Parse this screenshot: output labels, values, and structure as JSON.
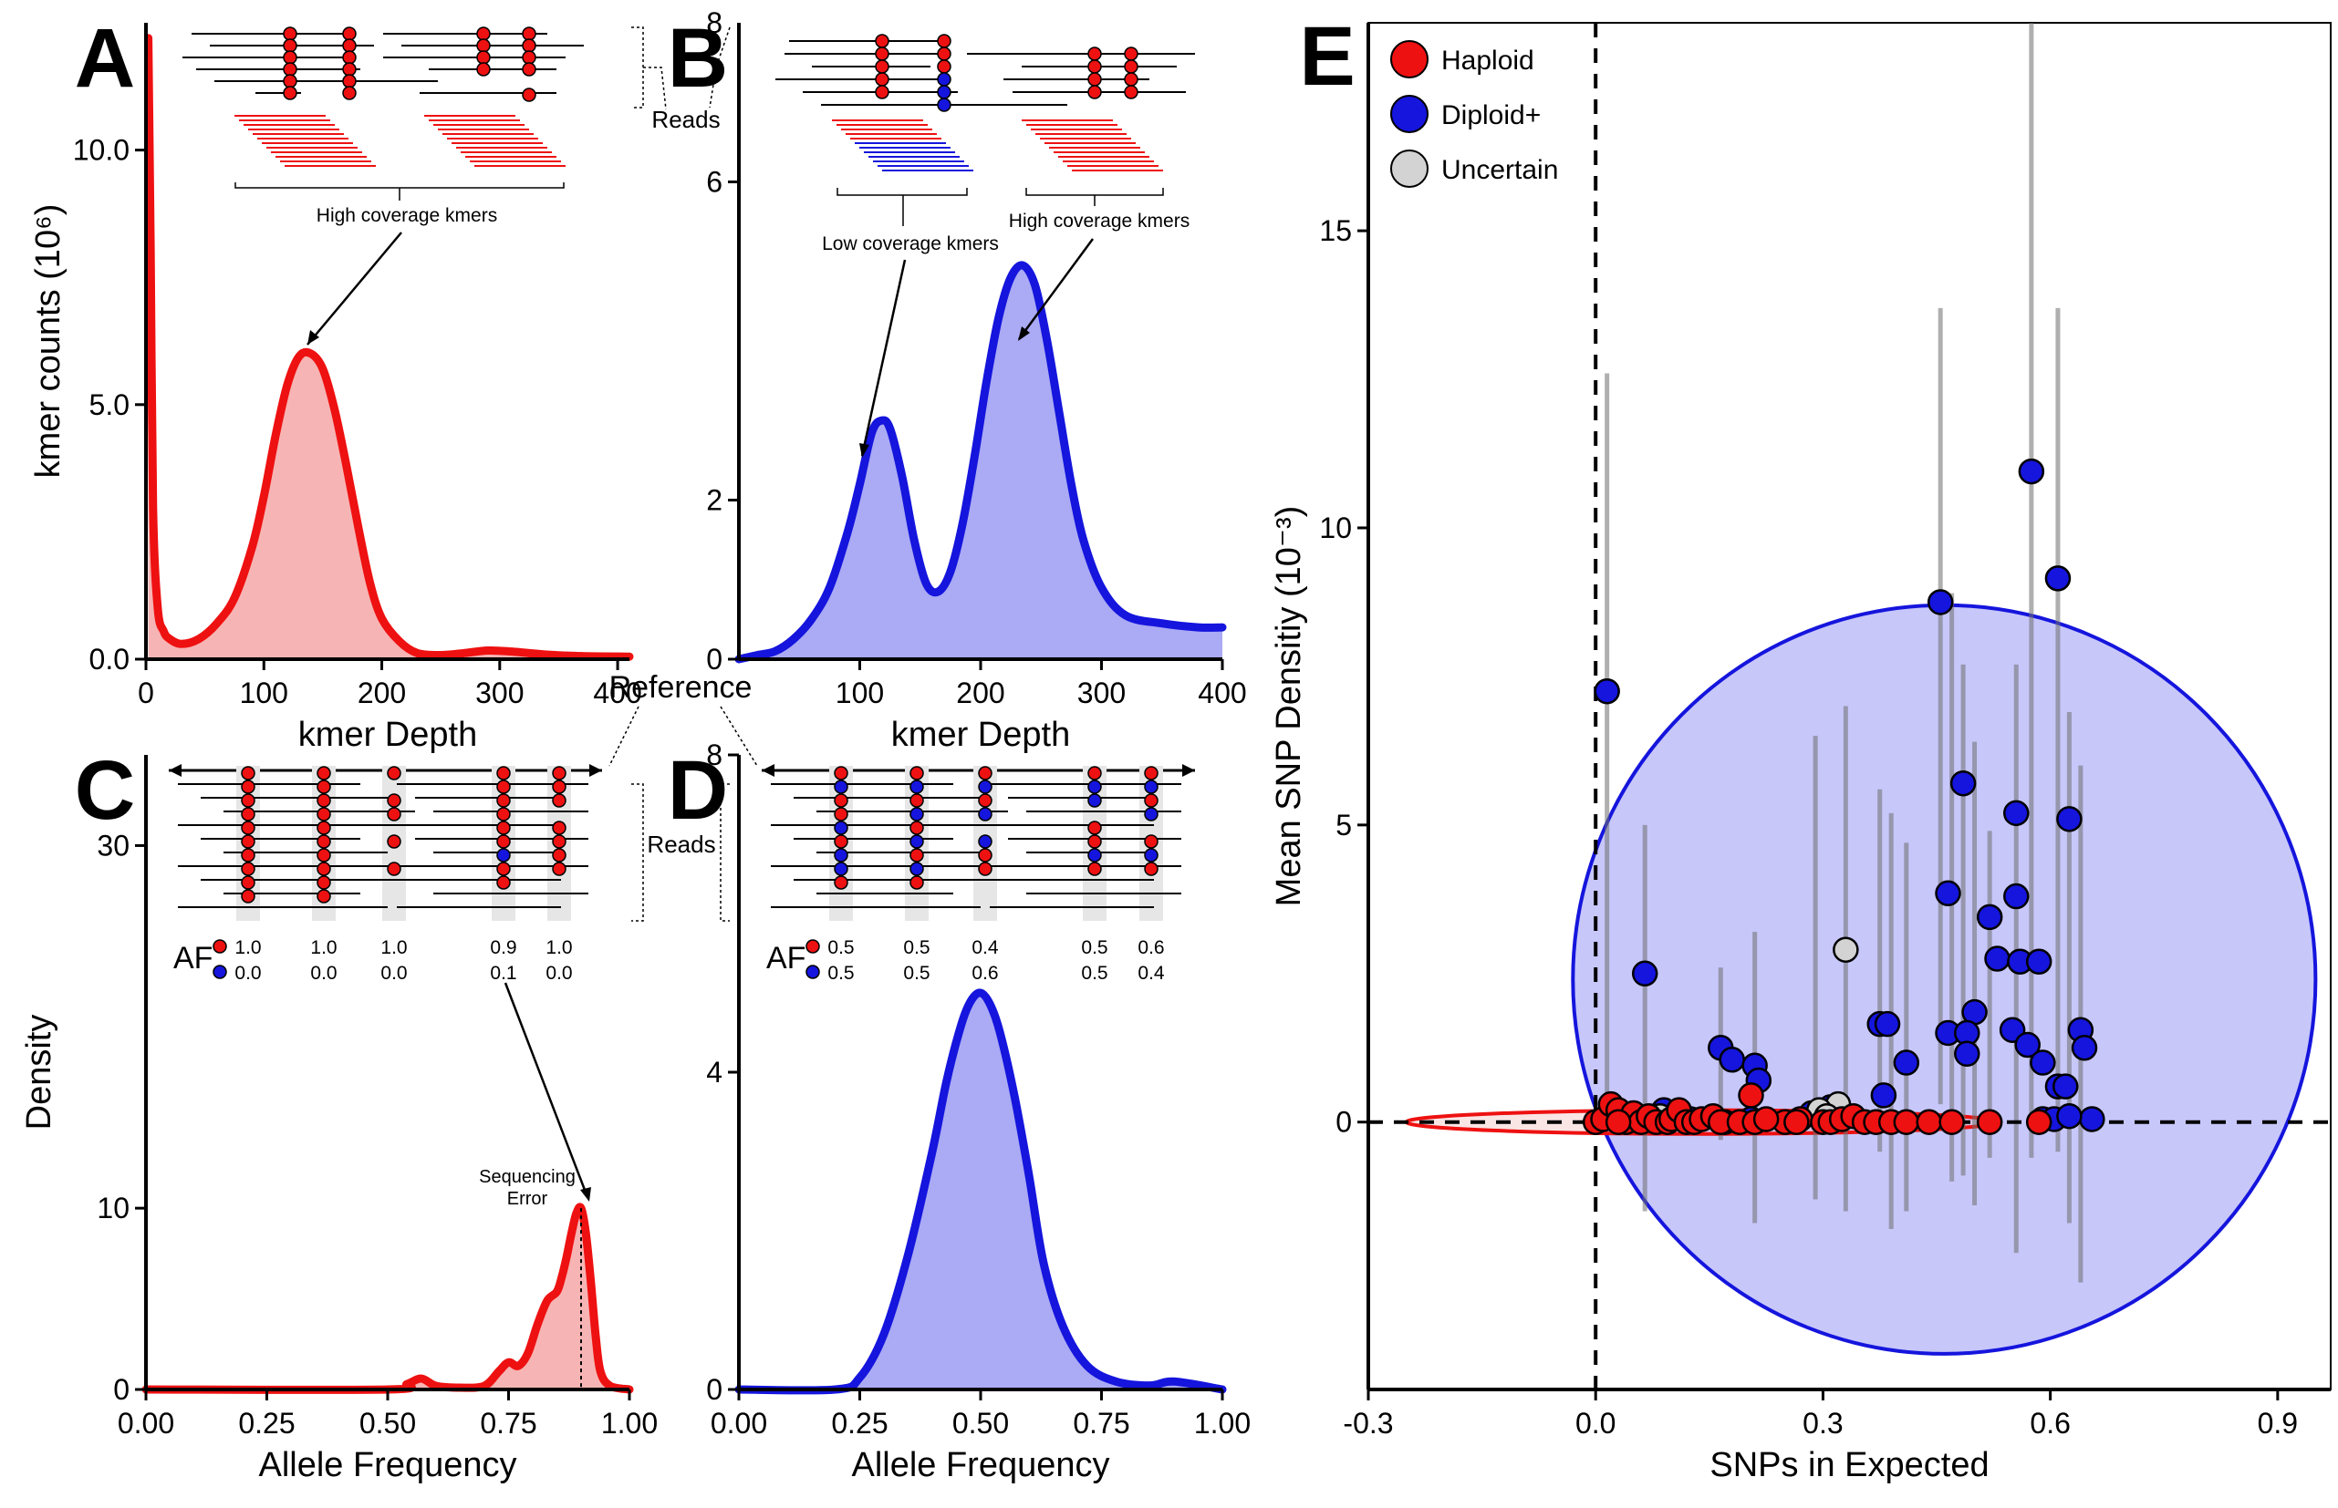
{
  "colors": {
    "haploid": "#ee1111",
    "haploid_fill": "#f7b4b4",
    "diploid": "#1515dd",
    "diploid_fill": "#aaaaf5",
    "uncertain": "#d3d3d3"
  },
  "chart_data": [
    {
      "id": "A",
      "panel_label": "A",
      "type": "area",
      "xlabel": "kmer Depth",
      "ylabel": "kmer counts (10⁶)",
      "xlim": [
        0,
        410
      ],
      "ylim": [
        0,
        12.5
      ],
      "xticks": [
        0,
        100,
        200,
        300,
        400
      ],
      "xtick_labels": [
        "0",
        "100",
        "200",
        "300",
        "400"
      ],
      "yticks": [
        0,
        5,
        10
      ],
      "ytick_labels": [
        "0.0",
        "5.0",
        "10.0"
      ],
      "series": [
        {
          "color": "haploid",
          "fill": "haploid_fill",
          "x": [
            2,
            4,
            6,
            10,
            15,
            20,
            30,
            45,
            60,
            75,
            90,
            100,
            110,
            120,
            130,
            140,
            150,
            160,
            170,
            180,
            190,
            200,
            215,
            230,
            250,
            270,
            290,
            310,
            340,
            370,
            410
          ],
          "y": [
            12.2,
            8.0,
            3.0,
            1.0,
            0.55,
            0.4,
            0.3,
            0.4,
            0.7,
            1.2,
            2.2,
            3.2,
            4.4,
            5.4,
            5.95,
            6.0,
            5.7,
            4.9,
            3.8,
            2.6,
            1.5,
            0.8,
            0.35,
            0.12,
            0.08,
            0.12,
            0.17,
            0.15,
            0.09,
            0.06,
            0.05
          ]
        }
      ],
      "inset": {
        "caption": "High coverage kmers",
        "side_label": "Reads"
      }
    },
    {
      "id": "B",
      "panel_label": "B",
      "type": "area",
      "xlabel": "kmer Depth",
      "ylabel": "",
      "xlim": [
        0,
        400
      ],
      "ylim": [
        0,
        8
      ],
      "xticks": [
        100,
        200,
        300,
        400
      ],
      "xtick_labels": [
        "100",
        "200",
        "300",
        "400"
      ],
      "yticks": [
        0,
        2,
        6
      ],
      "ytick_labels": [
        "0",
        "2",
        "6"
      ],
      "yaxis_top_label": "8",
      "series": [
        {
          "color": "diploid",
          "fill": "diploid_fill",
          "x": [
            0,
            15,
            30,
            45,
            60,
            75,
            90,
            100,
            110,
            118,
            125,
            135,
            145,
            155,
            165,
            175,
            185,
            195,
            205,
            215,
            225,
            235,
            245,
            255,
            265,
            275,
            285,
            300,
            320,
            350,
            380,
            400
          ],
          "y": [
            0.0,
            0.05,
            0.1,
            0.25,
            0.5,
            0.9,
            1.6,
            2.2,
            2.85,
            3.0,
            2.9,
            2.3,
            1.5,
            0.95,
            0.85,
            1.1,
            1.7,
            2.55,
            3.5,
            4.3,
            4.8,
            4.95,
            4.7,
            4.0,
            3.1,
            2.2,
            1.5,
            0.9,
            0.55,
            0.45,
            0.4,
            0.4
          ]
        }
      ],
      "inset": {
        "caption_low": "Low coverage kmers",
        "caption_high": "High coverage kmers"
      }
    },
    {
      "id": "C",
      "panel_label": "C",
      "type": "area",
      "xlabel": "Allele Frequency",
      "ylabel": "Density",
      "xlim": [
        0,
        1
      ],
      "ylim": [
        0,
        35
      ],
      "xticks": [
        0,
        0.25,
        0.5,
        0.75,
        1
      ],
      "xtick_labels": [
        "0.00",
        "0.25",
        "0.50",
        "0.75",
        "1.00"
      ],
      "yticks": [
        0,
        10,
        30
      ],
      "ytick_labels": [
        "0",
        "10",
        "30"
      ],
      "series": [
        {
          "color": "haploid",
          "fill": "haploid_fill",
          "x": [
            0,
            0.5,
            0.54,
            0.57,
            0.6,
            0.65,
            0.7,
            0.73,
            0.75,
            0.77,
            0.79,
            0.81,
            0.83,
            0.85,
            0.86,
            0.87,
            0.88,
            0.89,
            0.9,
            0.91,
            0.92,
            0.93,
            0.94,
            0.96,
            1.0
          ],
          "y": [
            0,
            0,
            0.3,
            0.6,
            0.2,
            0.1,
            0.2,
            1.0,
            1.5,
            1.3,
            2.0,
            3.6,
            4.9,
            5.4,
            6.2,
            7.3,
            8.6,
            9.7,
            10.0,
            8.6,
            6.0,
            3.0,
            1.0,
            0.2,
            0.0
          ]
        }
      ],
      "annotation": "Sequencing Error",
      "inset": {
        "af_label": "AF",
        "ref_label": "Reference",
        "side_label": "Reads",
        "columns": [
          {
            "top": "1.0",
            "bottom": "0.0"
          },
          {
            "top": "1.0",
            "bottom": "0.0"
          },
          {
            "top": "1.0",
            "bottom": "0.0"
          },
          {
            "top": "0.9",
            "bottom": "0.1"
          },
          {
            "top": "1.0",
            "bottom": "0.0"
          }
        ]
      }
    },
    {
      "id": "D",
      "panel_label": "D",
      "type": "area",
      "xlabel": "Allele Frequency",
      "ylabel": "",
      "xlim": [
        0,
        1
      ],
      "ylim": [
        0,
        8
      ],
      "xticks": [
        0,
        0.25,
        0.5,
        0.75,
        1
      ],
      "xtick_labels": [
        "0.00",
        "0.25",
        "0.50",
        "0.75",
        "1.00"
      ],
      "yticks": [
        0,
        4,
        8
      ],
      "ytick_labels": [
        "0",
        "4",
        "8"
      ],
      "series": [
        {
          "color": "diploid",
          "fill": "diploid_fill",
          "x": [
            0,
            0.2,
            0.25,
            0.3,
            0.35,
            0.4,
            0.43,
            0.46,
            0.48,
            0.5,
            0.52,
            0.54,
            0.57,
            0.6,
            0.63,
            0.67,
            0.72,
            0.78,
            0.85,
            0.9,
            1.0
          ],
          "y": [
            0,
            0.0,
            0.15,
            0.7,
            1.7,
            3.0,
            3.9,
            4.6,
            4.9,
            5.0,
            4.85,
            4.5,
            3.7,
            2.7,
            1.6,
            0.8,
            0.3,
            0.1,
            0.05,
            0.1,
            0.0
          ]
        }
      ],
      "inset": {
        "af_label": "AF",
        "columns": [
          {
            "top": "0.5",
            "bottom": "0.5"
          },
          {
            "top": "0.5",
            "bottom": "0.5"
          },
          {
            "top": "0.4",
            "bottom": "0.6"
          },
          {
            "top": "0.5",
            "bottom": "0.5"
          },
          {
            "top": "0.6",
            "bottom": "0.4"
          }
        ]
      }
    },
    {
      "id": "E",
      "panel_label": "E",
      "type": "scatter",
      "xlabel": "SNPs in Expected",
      "ylabel": "Mean SNP Densitiy (10⁻³)",
      "xlim": [
        -0.3,
        0.97
      ],
      "ylim": [
        -4.5,
        18.5
      ],
      "xticks": [
        -0.3,
        0,
        0.3,
        0.6,
        0.9
      ],
      "xtick_labels": [
        "-0.3",
        "0.0",
        "0.3",
        "0.6",
        "0.9"
      ],
      "yticks": [
        0,
        5,
        10,
        15
      ],
      "ytick_labels": [
        "0",
        "5",
        "10",
        "15"
      ],
      "reference_lines": {
        "x": 0,
        "y": 0
      },
      "legend": {
        "position": "top-left",
        "items": [
          {
            "label": "Haploid",
            "color": "haploid"
          },
          {
            "label": "Diploid+",
            "color": "diploid"
          },
          {
            "label": "Uncertain",
            "color": "uncertain"
          }
        ]
      },
      "ellipses": [
        {
          "class": "diploid",
          "cx": 0.46,
          "cy": 2.4,
          "rx": 0.49,
          "ry": 6.3
        },
        {
          "class": "haploid",
          "cx": 0.14,
          "cy": 0.0,
          "rx": 0.39,
          "ry": 0.2
        }
      ],
      "errorbars": [
        {
          "x": 0.015,
          "lo": 0.0,
          "hi": 12.6
        },
        {
          "x": 0.065,
          "lo": -1.5,
          "hi": 5.0
        },
        {
          "x": 0.165,
          "lo": -0.3,
          "hi": 2.6
        },
        {
          "x": 0.21,
          "lo": -1.7,
          "hi": 3.2
        },
        {
          "x": 0.29,
          "lo": -1.3,
          "hi": 6.5
        },
        {
          "x": 0.33,
          "lo": -1.5,
          "hi": 7.0
        },
        {
          "x": 0.375,
          "lo": -0.5,
          "hi": 5.6
        },
        {
          "x": 0.39,
          "lo": -1.8,
          "hi": 5.2
        },
        {
          "x": 0.41,
          "lo": -1.5,
          "hi": 4.7
        },
        {
          "x": 0.455,
          "lo": 0.3,
          "hi": 13.7
        },
        {
          "x": 0.47,
          "lo": -1.0,
          "hi": 8.9
        },
        {
          "x": 0.485,
          "lo": -0.9,
          "hi": 7.7
        },
        {
          "x": 0.5,
          "lo": -1.4,
          "hi": 6.4
        },
        {
          "x": 0.52,
          "lo": -0.6,
          "hi": 4.9
        },
        {
          "x": 0.555,
          "lo": -2.2,
          "hi": 7.7
        },
        {
          "x": 0.575,
          "lo": -0.6,
          "hi": 18.5
        },
        {
          "x": 0.61,
          "lo": -0.5,
          "hi": 13.7
        },
        {
          "x": 0.625,
          "lo": -1.7,
          "hi": 6.9
        },
        {
          "x": 0.64,
          "lo": -2.7,
          "hi": 6.0
        }
      ],
      "points": {
        "diploid": [
          [
            0.015,
            7.25
          ],
          [
            0.575,
            10.95
          ],
          [
            0.61,
            9.15
          ],
          [
            0.455,
            8.75
          ],
          [
            0.485,
            5.7
          ],
          [
            0.555,
            5.2
          ],
          [
            0.625,
            5.1
          ],
          [
            0.065,
            2.5
          ],
          [
            0.465,
            3.85
          ],
          [
            0.555,
            3.8
          ],
          [
            0.52,
            3.45
          ],
          [
            0.53,
            2.75
          ],
          [
            0.56,
            2.7
          ],
          [
            0.585,
            2.7
          ],
          [
            0.5,
            1.85
          ],
          [
            0.375,
            1.65
          ],
          [
            0.385,
            1.65
          ],
          [
            0.465,
            1.5
          ],
          [
            0.49,
            1.5
          ],
          [
            0.55,
            1.55
          ],
          [
            0.57,
            1.3
          ],
          [
            0.64,
            1.55
          ],
          [
            0.645,
            1.25
          ],
          [
            0.165,
            1.25
          ],
          [
            0.18,
            1.05
          ],
          [
            0.21,
            0.95
          ],
          [
            0.41,
            1.0
          ],
          [
            0.49,
            1.15
          ],
          [
            0.215,
            0.7
          ],
          [
            0.38,
            0.45
          ],
          [
            0.59,
            1.0
          ],
          [
            0.61,
            0.6
          ],
          [
            0.62,
            0.6
          ],
          [
            0.035,
            0.1
          ],
          [
            0.08,
            0.05
          ],
          [
            0.125,
            0.05
          ],
          [
            0.205,
            0.05
          ],
          [
            0.285,
            0.15
          ],
          [
            0.59,
            0.05
          ],
          [
            0.605,
            0.05
          ],
          [
            0.655,
            0.05
          ],
          [
            0.625,
            0.1
          ],
          [
            0.31,
            0.25
          ],
          [
            0.09,
            0.2
          ],
          [
            0.17,
            0.0
          ]
        ],
        "uncertain": [
          [
            0.33,
            2.9
          ],
          [
            0.32,
            0.3
          ],
          [
            0.295,
            0.2
          ],
          [
            0.305,
            0.1
          ],
          [
            0.085,
            0.1
          ]
        ],
        "haploid": [
          [
            0.0,
            0.0
          ],
          [
            0.01,
            0.05
          ],
          [
            0.02,
            0.3
          ],
          [
            0.03,
            0.2
          ],
          [
            0.04,
            0.0
          ],
          [
            0.05,
            0.15
          ],
          [
            0.06,
            0.0
          ],
          [
            0.07,
            0.1
          ],
          [
            0.08,
            0.0
          ],
          [
            0.095,
            0.0
          ],
          [
            0.1,
            0.05
          ],
          [
            0.11,
            0.2
          ],
          [
            0.12,
            0.0
          ],
          [
            0.13,
            0.0
          ],
          [
            0.14,
            0.05
          ],
          [
            0.155,
            0.1
          ],
          [
            0.165,
            0.0
          ],
          [
            0.19,
            0.0
          ],
          [
            0.205,
            0.45
          ],
          [
            0.21,
            0.0
          ],
          [
            0.25,
            0.0
          ],
          [
            0.27,
            0.05
          ],
          [
            0.3,
            0.0
          ],
          [
            0.31,
            0.0
          ],
          [
            0.325,
            0.05
          ],
          [
            0.34,
            0.1
          ],
          [
            0.355,
            0.0
          ],
          [
            0.37,
            0.0
          ],
          [
            0.39,
            0.0
          ],
          [
            0.41,
            0.0
          ],
          [
            0.44,
            0.0
          ],
          [
            0.47,
            0.0
          ],
          [
            0.52,
            0.0
          ],
          [
            0.585,
            0.0
          ],
          [
            0.03,
            0.0
          ],
          [
            0.265,
            0.0
          ],
          [
            0.225,
            0.05
          ]
        ]
      }
    }
  ]
}
